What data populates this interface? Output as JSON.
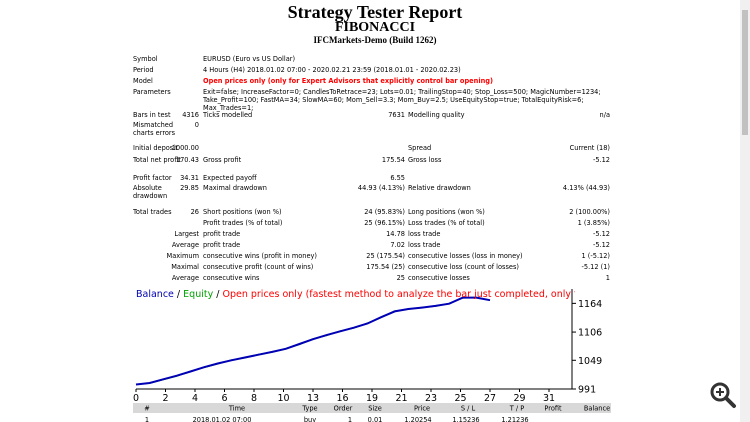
{
  "header": {
    "title": "Strategy Tester Report",
    "subtitle": "FIBONACCI",
    "build": "IFCMarkets-Demo (Build 1262)"
  },
  "info": [
    [
      "Symbol",
      "EURUSD (Euro vs US Dollar)"
    ],
    [
      "Period",
      "4 Hours (H4) 2018.01.02 07:00 - 2020.02.21 23:59 (2018.01.01 - 2020.02.23)"
    ],
    [
      "Model",
      "Open prices only (only for Expert Advisors that explicitly control bar opening)"
    ],
    [
      "Parameters",
      "Exit=false; IncreaseFactor=0; CandlesToRetrace=23; Lots=0.01; TrailingStop=40; Stop_Loss=500; MagicNumber=1234; Take_Profit=100; FastMA=34; SlowMA=60; Mom_Sell=3.3; Mom_Buy=2.5; UseEquityStop=true; TotalEquityRisk=6; Max_Trades=1;"
    ]
  ],
  "stats": [
    [
      "Bars in test",
      "4316",
      "Ticks modelled",
      "7631",
      "Modelling quality",
      "n/a"
    ],
    [
      "Mismatched charts errors",
      "0",
      null,
      null,
      null,
      null
    ],
    [
      "Initial deposit",
      "1000.00",
      null,
      null,
      "Spread",
      "Current (18)"
    ],
    [
      "Total net profit",
      "170.43",
      "Gross profit",
      "175.54",
      "Gross loss",
      "-5.12"
    ],
    [
      "Profit factor",
      "34.31",
      "Expected payoff",
      "6.55",
      null,
      null
    ],
    [
      "Absolute drawdown",
      "29.85",
      "Maximal drawdown",
      "44.93 (4.13%)",
      "Relative drawdown",
      "4.13% (44.93)"
    ],
    [
      "Total trades",
      "26",
      "Short positions (won %)",
      "24 (95.83%)",
      "Long positions (won %)",
      "2 (100.00%)"
    ],
    [
      null,
      null,
      "Profit trades (% of total)",
      "25 (96.15%)",
      "Loss trades (% of total)",
      "1 (3.85%)"
    ],
    [
      null,
      "Largest",
      "profit trade",
      "14.78",
      "loss trade",
      "-5.12"
    ],
    [
      null,
      "Average",
      "profit trade",
      "7.02",
      "loss trade",
      "-5.12"
    ],
    [
      null,
      "Maximum",
      "consecutive wins (profit in money)",
      "25 (175.54)",
      "consecutive losses (loss in money)",
      "1 (-5.12)"
    ],
    [
      null,
      "Maximal",
      "consecutive profit (count of wins)",
      "175.54 (25)",
      "consecutive loss (count of losses)",
      "-5.12 (1)"
    ],
    [
      null,
      "Average",
      "consecutive wins",
      "25",
      "consecutive losses",
      "1"
    ]
  ],
  "chart_data": {
    "type": "line",
    "legend_separator": "/",
    "note": "Open prices only (fastest method to analyze the bar just completed, only for EAs that explicitly control b",
    "series": [
      {
        "name": "Balance",
        "color": "#0000b4",
        "values": [
          1000,
          1003.2,
          1010.5,
          1017.8,
          1026.4,
          1035.1,
          1042.6,
          1048.9,
          1054.7,
          1060.2,
          1066.0,
          1072.3,
          1081.9,
          1091.6,
          1099.8,
          1107.5,
          1114.9,
          1123.4,
          1136.1,
          1147.8,
          1152.6,
          1155.4,
          1158.9,
          1163.4,
          1175.55,
          1175.55,
          1170.43
        ]
      },
      {
        "name": "Equity",
        "color": "#00a000",
        "values": [
          1000,
          1002.5,
          1009.8,
          1016.9,
          1027.0,
          1034.5,
          1041.8,
          1049.5,
          1053.9,
          1061.0,
          1065.3,
          1073.0,
          1080.7,
          1092.4,
          1099.0,
          1108.3,
          1114.0,
          1124.1,
          1135.2,
          1148.6,
          1151.9,
          1156.0,
          1158.1,
          1164.2,
          1174.8,
          1176.0,
          1170.43
        ]
      }
    ],
    "xticks": [
      0,
      2,
      4,
      6,
      8,
      10,
      13,
      16,
      19,
      21,
      23,
      25,
      27,
      29,
      31
    ],
    "ylim": [
      991,
      1193
    ],
    "yticks": [
      1164,
      1106,
      1049,
      991
    ]
  },
  "table": {
    "header": [
      "#",
      "Time",
      "Type",
      "Order",
      "Size",
      "Price",
      "S / L",
      "T / P",
      "Profit",
      "Balance"
    ],
    "rows": [
      [
        "1",
        "2018.01.02 07:00",
        "buy",
        "1",
        "0.01",
        "1.20254",
        "1.15236",
        "1.21236"
      ]
    ]
  }
}
